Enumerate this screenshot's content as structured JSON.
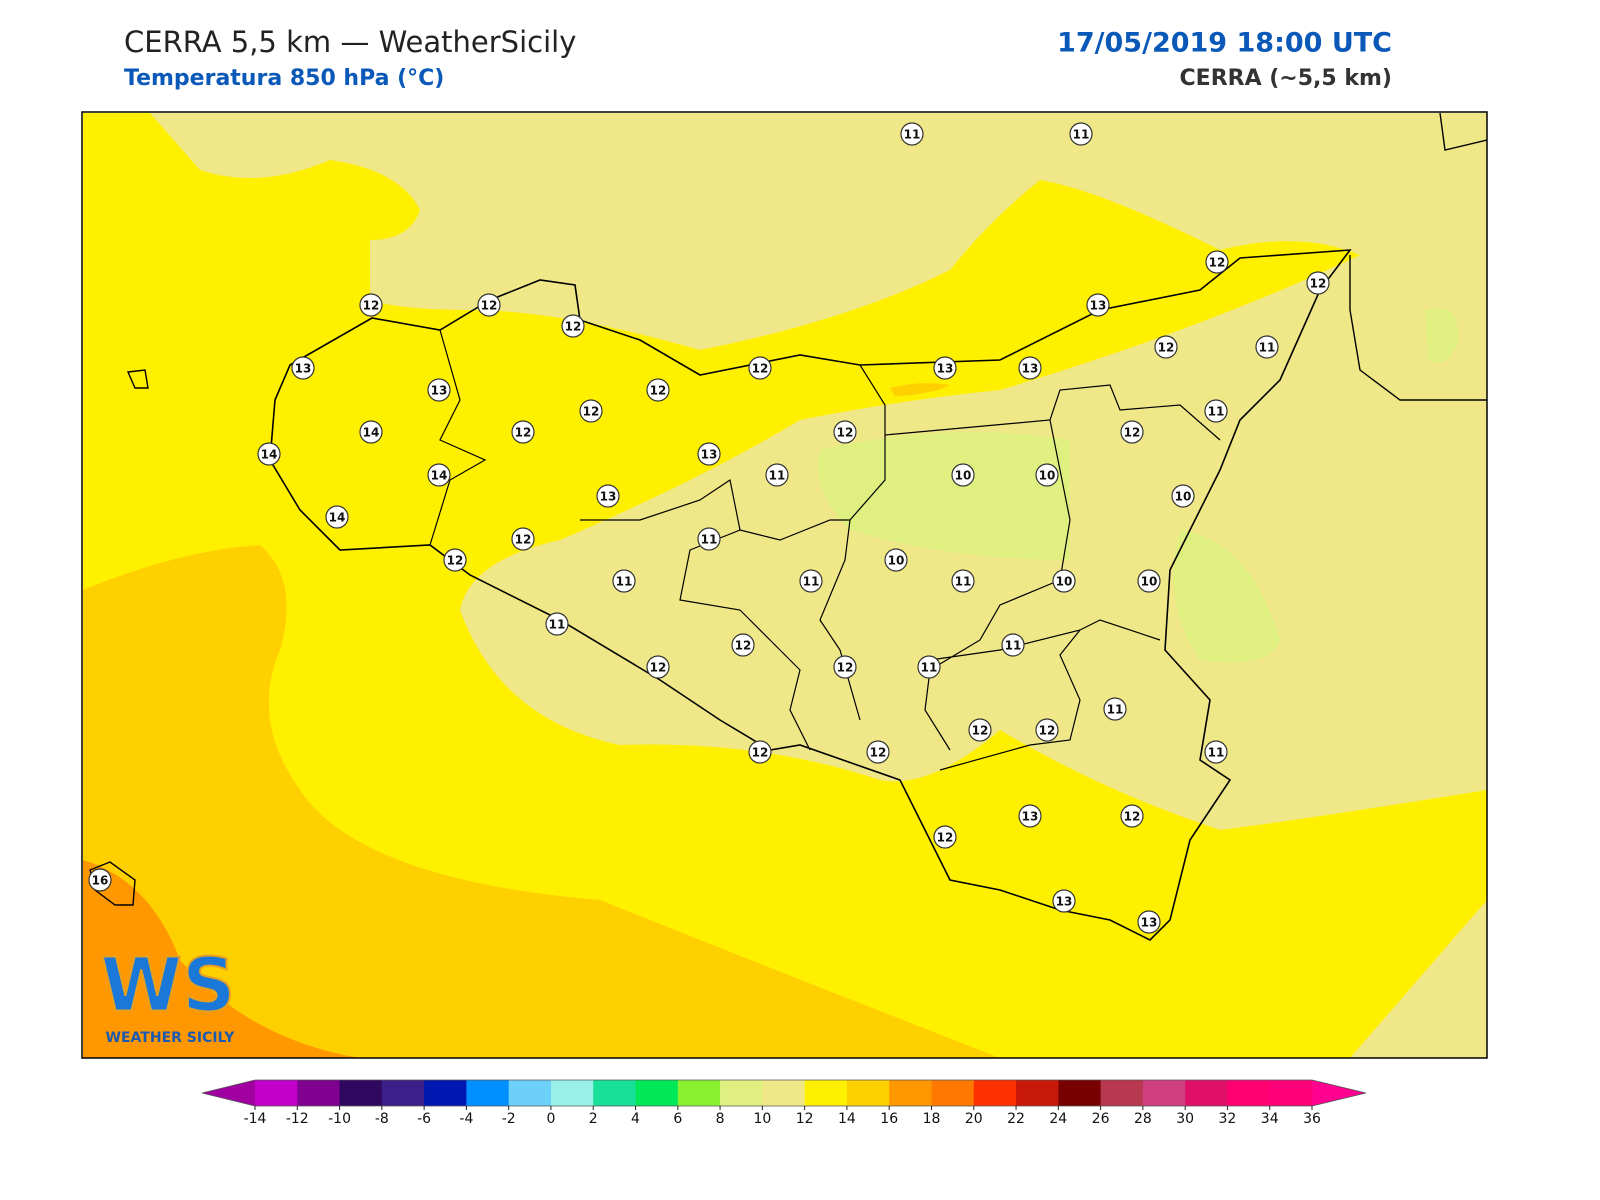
{
  "header": {
    "title": "CERRA 5,5 km — WeatherSicily",
    "subtitle": "Temperatura 850 hPa (°C)",
    "datetime": "17/05/2019 18:00 UTC",
    "model": "CERRA (~5,5 km)"
  },
  "stations": [
    11,
    11,
    12,
    12,
    12,
    12,
    12,
    13,
    12,
    11,
    13,
    13,
    12,
    12,
    13,
    13,
    12,
    11,
    14,
    12,
    12,
    12,
    14,
    13,
    14,
    11,
    10,
    10,
    13,
    10,
    14,
    12,
    11,
    12,
    10,
    11,
    11,
    11,
    10,
    10,
    11,
    11,
    12,
    12,
    12,
    11,
    11,
    12,
    12,
    12,
    12,
    11,
    13,
    12,
    12,
    13,
    13,
    16
  ],
  "colorbar": {
    "ticks": [
      -14,
      -12,
      -10,
      -8,
      -6,
      -4,
      -2,
      0,
      2,
      4,
      6,
      8,
      10,
      12,
      14,
      16,
      18,
      20,
      22,
      24,
      26,
      28,
      30,
      32,
      34,
      36
    ],
    "colors": [
      "#c000c8",
      "#800090",
      "#300860",
      "#3a2088",
      "#0018b0",
      "#0090ff",
      "#6cd0f8",
      "#98f0e8",
      "#18e098",
      "#00e858",
      "#88f030",
      "#e0f080",
      "#f0e888",
      "#fff000",
      "#ffd000",
      "#ff9800",
      "#ff7800",
      "#ff3000",
      "#c81808",
      "#780000",
      "#b83850",
      "#d04080",
      "#e01068",
      "#ff0070",
      "#ff0078"
    ],
    "under": "#a000a0",
    "over": "#ff0090"
  },
  "logo": {
    "mark": "WS",
    "name": "WEATHER SICILY"
  }
}
